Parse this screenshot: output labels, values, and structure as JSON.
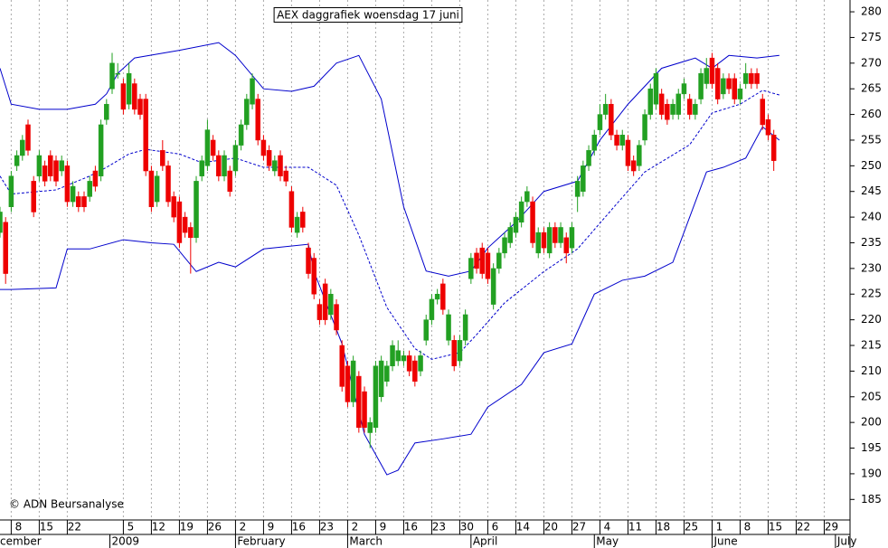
{
  "chart_data": {
    "type": "candlestick",
    "title": "AEX daggrafiek woensdag 17 juni",
    "copyright": "© ADN Beursanalyse",
    "x": [
      -2,
      -1,
      0,
      1,
      2,
      3,
      4,
      5,
      6,
      7,
      8,
      9,
      10,
      11,
      12,
      13,
      14,
      15,
      16,
      17,
      18,
      19,
      20,
      21,
      22,
      23,
      24,
      25,
      26,
      27,
      28,
      29,
      30,
      31,
      32,
      33,
      34,
      35,
      36,
      37,
      38,
      39,
      40,
      41,
      42,
      43,
      44,
      45,
      46,
      47,
      48,
      49,
      50,
      51,
      52,
      53,
      54,
      55,
      56,
      57,
      58,
      59,
      60,
      61,
      62,
      63,
      64,
      65,
      66,
      67,
      68,
      69,
      70,
      71,
      72,
      73,
      74,
      75,
      76,
      77,
      78,
      79,
      80,
      81,
      82,
      83,
      84,
      85,
      86,
      87,
      88,
      89,
      90,
      91,
      92,
      93,
      94,
      95,
      96,
      97,
      98,
      99,
      100,
      101,
      102,
      103,
      104,
      105,
      106,
      107,
      108,
      109,
      110,
      111,
      112,
      113,
      114,
      115,
      116,
      117,
      118,
      119,
      120,
      121,
      122,
      123,
      124,
      125,
      126,
      127,
      128,
      129,
      130,
      131,
      132,
      133,
      134,
      135,
      136
    ],
    "open": [
      237,
      239,
      242,
      250,
      252,
      258,
      247,
      248,
      250,
      252,
      251,
      249,
      250,
      243,
      244,
      244,
      244,
      249,
      248,
      259,
      265,
      268,
      266,
      262,
      266,
      263,
      263,
      249,
      243,
      253,
      250,
      244,
      243,
      240,
      238,
      236,
      248,
      250,
      255,
      252,
      248,
      249,
      249,
      254,
      258,
      262,
      263,
      255,
      253,
      249,
      252,
      249,
      245,
      237,
      241,
      234,
      232,
      223,
      227,
      221,
      223,
      215,
      211,
      204,
      209,
      206,
      198,
      199,
      205,
      208,
      211,
      212,
      212,
      213,
      212,
      210,
      216,
      220,
      224,
      227,
      216,
      216,
      212,
      216,
      228,
      233,
      234,
      233,
      223,
      230,
      233,
      235,
      237,
      239,
      243,
      243,
      233,
      237,
      233,
      238,
      235,
      236,
      234,
      244,
      245,
      250,
      253,
      257,
      260,
      262,
      256,
      254,
      255,
      251,
      250,
      255,
      260,
      262,
      264,
      262,
      260,
      260,
      264,
      263,
      260,
      263,
      266,
      271,
      269,
      264,
      267,
      267,
      263,
      266,
      268,
      268,
      263,
      259,
      256
    ],
    "high": [
      242,
      240,
      249,
      253,
      256,
      259,
      248,
      253,
      251,
      253,
      252,
      252,
      251,
      247,
      245,
      245,
      248,
      250,
      259,
      263,
      272,
      270,
      267,
      270,
      267,
      264,
      264,
      250,
      249,
      255,
      251,
      245,
      244,
      241,
      239,
      248,
      252,
      259,
      256,
      253,
      253,
      250,
      255,
      259,
      264,
      268,
      264,
      256,
      254,
      252,
      253,
      250,
      246,
      241,
      242,
      235,
      233,
      224,
      228,
      226,
      224,
      216,
      212,
      213,
      210,
      207,
      201,
      212,
      213,
      212,
      216,
      216,
      214,
      214,
      213,
      214,
      221,
      225,
      226,
      228,
      222,
      217,
      217,
      222,
      233,
      234,
      235,
      234,
      231,
      234,
      237,
      239,
      241,
      244,
      246,
      244,
      238,
      238,
      239,
      239,
      239,
      237,
      239,
      248,
      251,
      254,
      257,
      262,
      264,
      263,
      257,
      257,
      256,
      252,
      255,
      261,
      266,
      269,
      265,
      263,
      263,
      265,
      267,
      264,
      263,
      269,
      271,
      272,
      270,
      268,
      268,
      268,
      266,
      270,
      269,
      269,
      264,
      260,
      257
    ],
    "low": [
      236,
      227,
      241,
      249,
      251,
      252,
      240,
      247,
      246,
      247,
      246,
      248,
      242,
      242,
      241,
      241,
      243,
      245,
      247,
      258,
      264,
      267,
      260,
      261,
      260,
      259,
      248,
      241,
      242,
      249,
      242,
      239,
      234,
      236,
      229,
      235,
      247,
      249,
      251,
      247,
      247,
      244,
      248,
      253,
      257,
      261,
      254,
      251,
      249,
      248,
      247,
      246,
      237,
      236,
      237,
      228,
      224,
      219,
      219,
      220,
      217,
      206,
      203,
      203,
      198,
      198,
      195,
      198,
      204,
      207,
      210,
      211,
      211,
      209,
      207,
      209,
      215,
      219,
      223,
      221,
      215,
      210,
      211,
      215,
      227,
      229,
      228,
      227,
      222,
      229,
      232,
      234,
      236,
      238,
      242,
      234,
      232,
      233,
      232,
      234,
      234,
      231,
      233,
      241,
      244,
      249,
      252,
      256,
      259,
      255,
      253,
      253,
      249,
      248,
      249,
      254,
      259,
      261,
      259,
      258,
      259,
      259,
      263,
      259,
      259,
      262,
      265,
      265,
      262,
      263,
      264,
      262,
      262,
      265,
      265,
      265,
      257,
      255,
      249
    ],
    "close": [
      241,
      229,
      248,
      252,
      255,
      253,
      241,
      252,
      247,
      248,
      247,
      251,
      243,
      246,
      242,
      242,
      247,
      246,
      258,
      262,
      270,
      268,
      261,
      268,
      261,
      260,
      249,
      242,
      248,
      250,
      243,
      240,
      235,
      237,
      236,
      247,
      251,
      257,
      252,
      248,
      252,
      245,
      254,
      258,
      263,
      267,
      255,
      252,
      250,
      251,
      248,
      247,
      238,
      240,
      238,
      229,
      225,
      220,
      220,
      225,
      218,
      207,
      204,
      212,
      199,
      199,
      200,
      211,
      212,
      211,
      215,
      214,
      213,
      210,
      208,
      213,
      220,
      224,
      225,
      222,
      221,
      211,
      216,
      221,
      232,
      230,
      229,
      228,
      230,
      233,
      236,
      238,
      240,
      243,
      245,
      235,
      237,
      234,
      238,
      235,
      238,
      233,
      238,
      247,
      250,
      253,
      256,
      260,
      262,
      256,
      254,
      256,
      250,
      249,
      254,
      260,
      265,
      268,
      260,
      259,
      262,
      264,
      266,
      260,
      262,
      268,
      269,
      266,
      263,
      267,
      265,
      263,
      265,
      268,
      266,
      266,
      258,
      256,
      251
    ],
    "up_color": "#22a022",
    "down_color": "#ee0000",
    "band_color": "#0000cc",
    "bands": [
      {
        "x": [
          -2,
          0,
          5,
          10,
          15,
          17,
          19,
          22,
          30,
          37,
          40,
          45,
          50,
          54,
          58,
          62,
          66,
          70,
          74,
          78,
          82,
          85,
          90,
          95,
          101,
          105,
          110,
          116,
          122,
          125,
          128,
          133,
          137
        ],
        "values": [
          269,
          262,
          261,
          261,
          262,
          264,
          268,
          271,
          272.5,
          274,
          271.5,
          265,
          264.5,
          265.5,
          270,
          271.5,
          263,
          242,
          229.5,
          228.5,
          229.5,
          234,
          239,
          245,
          247,
          255,
          262,
          269,
          271,
          269,
          271.5,
          271,
          271.5
        ],
        "dashed": false
      },
      {
        "x": [
          -2,
          0,
          8,
          14,
          17,
          21,
          24,
          30,
          34,
          40,
          45,
          53,
          58,
          62,
          67,
          72,
          75,
          80,
          83,
          88,
          95,
          101,
          108,
          113,
          121,
          125,
          130,
          134,
          137
        ],
        "values": [
          248,
          244.5,
          245.3,
          248,
          249.7,
          252.3,
          253.2,
          252.3,
          250.6,
          251.5,
          249.7,
          249.7,
          246.2,
          236.5,
          222.4,
          214.4,
          212.3,
          213.6,
          217.1,
          223.3,
          229.4,
          233.8,
          242.6,
          248.8,
          254.1,
          260.3,
          262,
          264.7,
          263.8
        ],
        "dashed": true
      },
      {
        "x": [
          -2,
          0,
          8,
          10,
          14,
          20,
          25,
          29,
          33,
          37,
          40,
          45,
          53,
          54,
          59,
          63,
          67,
          69,
          72,
          77,
          82,
          85,
          91,
          95,
          100,
          104,
          109,
          113,
          118,
          124,
          127,
          131,
          134,
          137
        ],
        "values": [
          225.9,
          225.9,
          226.2,
          233.8,
          233.8,
          235.6,
          235,
          234.7,
          229.4,
          231.2,
          230.3,
          233.8,
          234.7,
          229.4,
          215.3,
          197.7,
          189.8,
          190.7,
          196,
          196.8,
          197.7,
          203,
          207.4,
          213.6,
          215.3,
          225,
          227.7,
          228.5,
          231.2,
          248.8,
          249.7,
          251.5,
          257.6,
          255
        ],
        "dashed": false
      }
    ],
    "ylim": [
      181,
      282.3
    ],
    "yticks": [
      185,
      190,
      195,
      200,
      205,
      210,
      215,
      220,
      225,
      230,
      235,
      240,
      245,
      250,
      255,
      260,
      265,
      270,
      275,
      280
    ],
    "xlim": [
      -2,
      149.6
    ],
    "xticks": [
      {
        "value": 0,
        "label": "8"
      },
      {
        "value": 5,
        "label": "15"
      },
      {
        "value": 10,
        "label": "22"
      },
      {
        "value": 20,
        "label": "5"
      },
      {
        "value": 25,
        "label": "12"
      },
      {
        "value": 30,
        "label": "19"
      },
      {
        "value": 35,
        "label": "26"
      },
      {
        "value": 40,
        "label": "2"
      },
      {
        "value": 45,
        "label": "9"
      },
      {
        "value": 50,
        "label": "16"
      },
      {
        "value": 55,
        "label": "23"
      },
      {
        "value": 60,
        "label": "2"
      },
      {
        "value": 65,
        "label": "9"
      },
      {
        "value": 70,
        "label": "16"
      },
      {
        "value": 75,
        "label": "23"
      },
      {
        "value": 80,
        "label": "30"
      },
      {
        "value": 85,
        "label": "6"
      },
      {
        "value": 90,
        "label": "14"
      },
      {
        "value": 95,
        "label": "20"
      },
      {
        "value": 100,
        "label": "27"
      },
      {
        "value": 105,
        "label": "4"
      },
      {
        "value": 110,
        "label": "11"
      },
      {
        "value": 115,
        "label": "18"
      },
      {
        "value": 120,
        "label": "25"
      },
      {
        "value": 125,
        "label": "1"
      },
      {
        "value": 130,
        "label": "8"
      },
      {
        "value": 135,
        "label": "15"
      },
      {
        "value": 140,
        "label": "22"
      },
      {
        "value": 145,
        "label": "29"
      }
    ],
    "month_ticks": [
      {
        "value": -5,
        "label": "December"
      },
      {
        "value": 17.6,
        "label": "2009"
      },
      {
        "value": 40,
        "label": "February"
      },
      {
        "value": 60,
        "label": "March"
      },
      {
        "value": 82,
        "label": "April"
      },
      {
        "value": 104,
        "label": "May"
      },
      {
        "value": 125,
        "label": "June"
      },
      {
        "value": 147,
        "label": "July"
      }
    ],
    "grid": "x"
  }
}
